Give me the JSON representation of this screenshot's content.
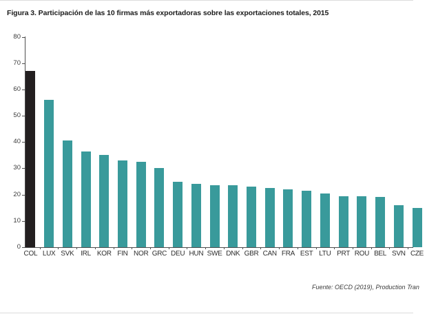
{
  "figure": {
    "title": "Figura 3. Participación de las 10 firmas más exportadoras sobre las exportaciones totales, 2015",
    "source": "Fuente: OECD (2019), Production Tran"
  },
  "chart_data": {
    "type": "bar",
    "title": "Figura 3. Participación de las 10 firmas más exportadoras sobre las exportaciones totales, 2015",
    "categories": [
      "COL",
      "LUX",
      "SVK",
      "IRL",
      "KOR",
      "FIN",
      "NOR",
      "GRC",
      "DEU",
      "HUN",
      "SWE",
      "DNK",
      "GBR",
      "CAN",
      "FRA",
      "EST",
      "LTU",
      "PRT",
      "ROU",
      "BEL",
      "SVN",
      "CZE"
    ],
    "values": [
      67,
      56,
      40.5,
      36.5,
      35,
      33,
      32.5,
      30,
      25,
      24,
      23.5,
      23.5,
      23,
      22.5,
      22,
      21.5,
      20.5,
      19.5,
      19.5,
      19,
      16,
      15
    ],
    "xlabel": "",
    "ylabel": "",
    "ylim": [
      0,
      80
    ],
    "yticks": [
      0,
      10,
      20,
      30,
      40,
      50,
      60,
      70,
      80
    ],
    "grid": false,
    "legend": null,
    "highlight_category": "COL",
    "colors": {
      "default": "#399a9b",
      "highlight": "#231f20"
    }
  }
}
